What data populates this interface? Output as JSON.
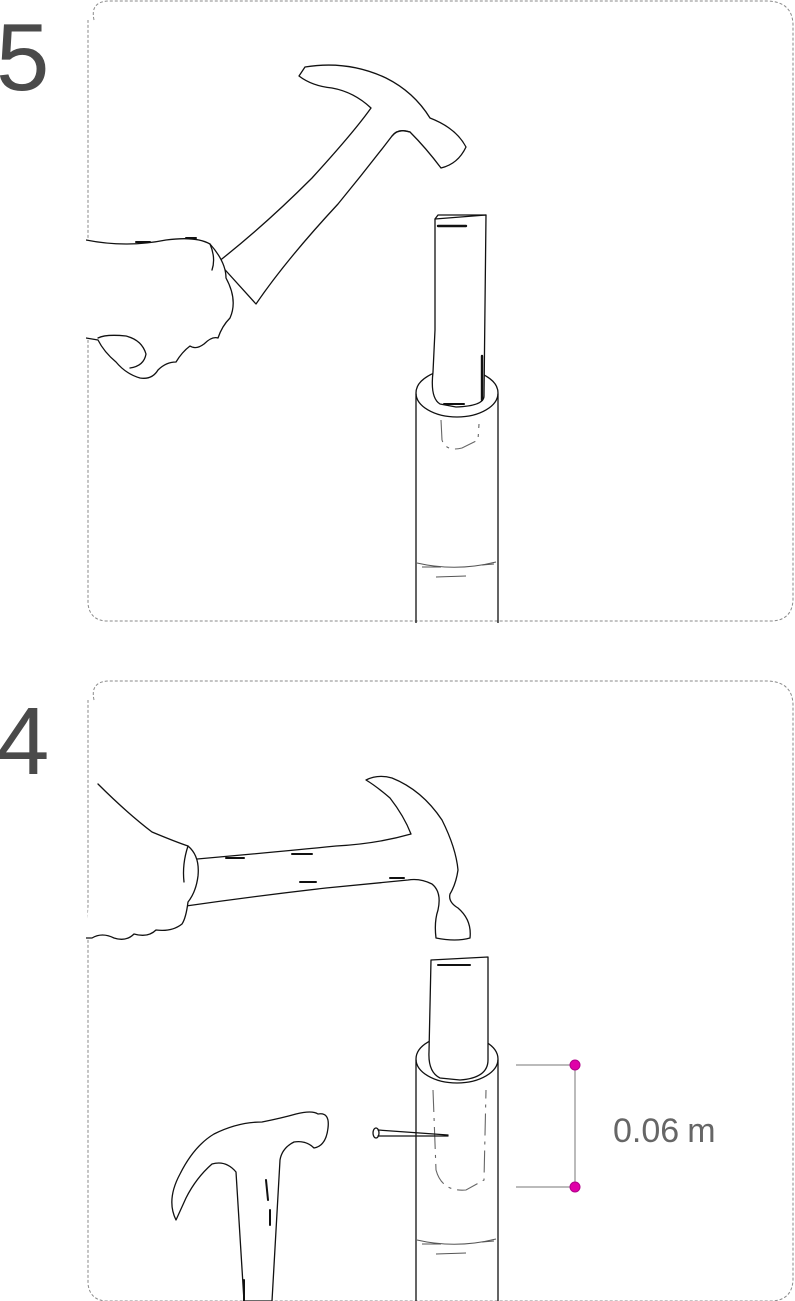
{
  "steps": [
    {
      "number": "5"
    },
    {
      "number": "4",
      "dimension": {
        "value": "0.06",
        "unit": "m"
      }
    }
  ],
  "colors": {
    "line": "#111111",
    "frame": "#8a8a8a",
    "step_number": "#4a4a4a",
    "dimension_marker": "#e000a8",
    "dimension_text": "#666666"
  }
}
